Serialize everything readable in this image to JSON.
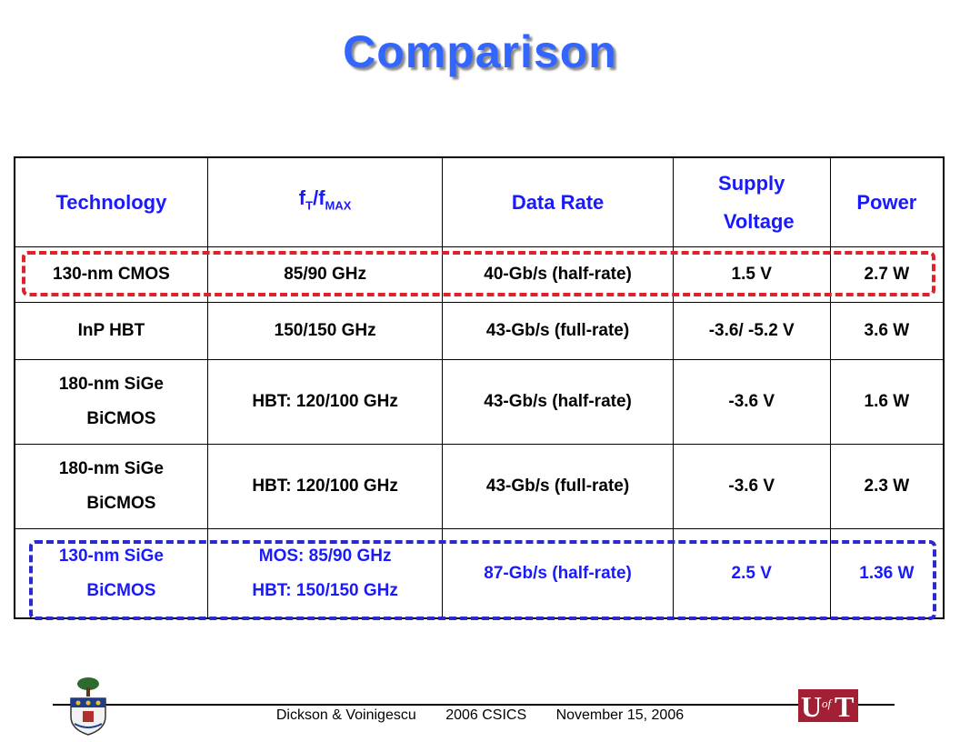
{
  "title": "Comparison",
  "table": {
    "headers": {
      "technology": "Technology",
      "ft_fmax": {
        "main": "f",
        "sub1": "T",
        "mid": "/f",
        "sub2": "MAX"
      },
      "data_rate": "Data Rate",
      "supply_line1": "Supply",
      "supply_line2": "Voltage",
      "power": "Power"
    },
    "rows": [
      {
        "technology": "130-nm CMOS",
        "ft_fmax": "85/90 GHz",
        "data_rate": "40-Gb/s (half-rate)",
        "supply": "1.5 V",
        "power": "2.7 W"
      },
      {
        "technology": "InP HBT",
        "ft_fmax": "150/150 GHz",
        "data_rate": "43-Gb/s (full-rate)",
        "supply": "-3.6/ -5.2 V",
        "power": "3.6 W"
      },
      {
        "technology_line1": "180-nm SiGe",
        "technology_line2": "BiCMOS",
        "ft_fmax": "HBT: 120/100 GHz",
        "data_rate": "43-Gb/s (half-rate)",
        "supply": "-3.6 V",
        "power": "1.6 W"
      },
      {
        "technology_line1": "180-nm SiGe",
        "technology_line2": "BiCMOS",
        "ft_fmax": "HBT: 120/100 GHz",
        "data_rate": "43-Gb/s (full-rate)",
        "supply": "-3.6 V",
        "power": "2.3 W"
      },
      {
        "technology_line1": "130-nm SiGe",
        "technology_line2": "BiCMOS",
        "ft_fmax_line1": "MOS: 85/90 GHz",
        "ft_fmax_line2": "HBT: 150/150 GHz",
        "data_rate": "87-Gb/s (half-rate)",
        "supply": "2.5 V",
        "power": "1.36 W"
      }
    ]
  },
  "footer": {
    "authors": "Dickson & Voinigescu",
    "conference": "2006 CSICS",
    "date": "November 15, 2006"
  },
  "logos": {
    "left": "university-crest",
    "right_text": {
      "u": "U",
      "of": "of",
      "t": "T"
    }
  },
  "colors": {
    "title": "#3366ff",
    "header_text": "#1a1aff",
    "highlight_red": "#e0202a",
    "highlight_blue": "#2a2ad0",
    "logo_red": "#a31f34"
  }
}
